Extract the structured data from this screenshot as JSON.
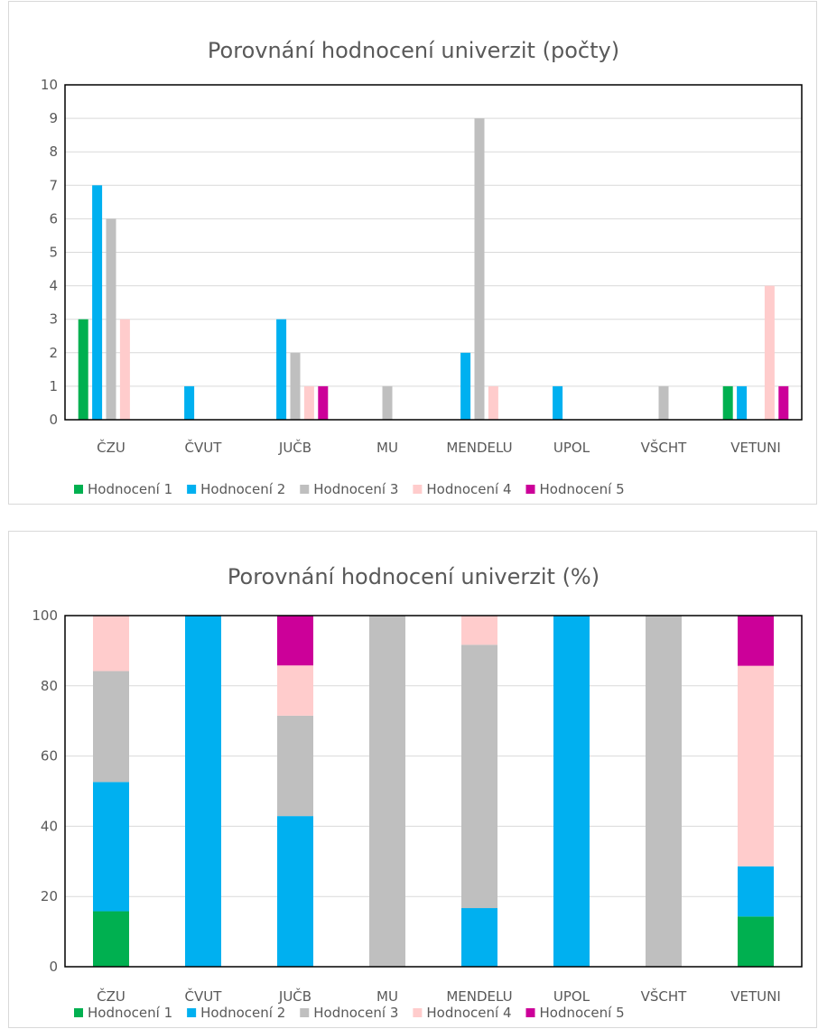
{
  "chart_data": [
    {
      "type": "bar",
      "title": "Porovnání hodnocení univerzit (počty)",
      "categories": [
        "ČZU",
        "ČVUT",
        "JUČB",
        "MU",
        "MENDELU",
        "UPOL",
        "VŠCHT",
        "VETUNI"
      ],
      "series": [
        {
          "name": "Hodnocení 1",
          "color": "#00b050",
          "values": [
            3,
            0,
            0,
            0,
            0,
            0,
            0,
            1
          ]
        },
        {
          "name": "Hodnocení 2",
          "color": "#00b0f0",
          "values": [
            7,
            1,
            3,
            0,
            2,
            1,
            0,
            1
          ]
        },
        {
          "name": "Hodnocení 3",
          "color": "#bfbfbf",
          "values": [
            6,
            0,
            2,
            1,
            9,
            0,
            1,
            0
          ]
        },
        {
          "name": "Hodnocení 4",
          "color": "#ffcccc",
          "values": [
            3,
            0,
            1,
            0,
            1,
            0,
            0,
            4
          ]
        },
        {
          "name": "Hodnocení 5",
          "color": "#cc0099",
          "values": [
            0,
            0,
            1,
            0,
            0,
            0,
            0,
            1
          ]
        }
      ],
      "ylim": [
        0,
        10
      ],
      "yticks": [
        "0",
        "1",
        "2",
        "3",
        "4",
        "5",
        "6",
        "7",
        "8",
        "9",
        "10"
      ],
      "grid": true,
      "legend": "bottom"
    },
    {
      "type": "bar",
      "stacked": true,
      "title": "Porovnání hodnocení univerzit (%)",
      "categories": [
        "ČZU",
        "ČVUT",
        "JUČB",
        "MU",
        "MENDELU",
        "UPOL",
        "VŠCHT",
        "VETUNI"
      ],
      "series": [
        {
          "name": "Hodnocení 1",
          "color": "#00b050",
          "values": [
            15.8,
            0,
            0,
            0,
            0,
            0,
            0,
            14.3
          ]
        },
        {
          "name": "Hodnocení 2",
          "color": "#00b0f0",
          "values": [
            36.8,
            100,
            42.9,
            0,
            16.7,
            100,
            0,
            14.3
          ]
        },
        {
          "name": "Hodnocení 3",
          "color": "#bfbfbf",
          "values": [
            31.6,
            0,
            28.6,
            100,
            75.0,
            0,
            100,
            0
          ]
        },
        {
          "name": "Hodnocení 4",
          "color": "#ffcccc",
          "values": [
            15.8,
            0,
            14.3,
            0,
            8.3,
            0,
            0,
            57.1
          ]
        },
        {
          "name": "Hodnocení 5",
          "color": "#cc0099",
          "values": [
            0,
            0,
            14.3,
            0,
            0,
            0,
            0,
            14.3
          ]
        }
      ],
      "ylim": [
        0,
        100
      ],
      "yticks": [
        "0",
        "20",
        "40",
        "60",
        "80",
        "100"
      ],
      "grid": true,
      "legend": "bottom"
    }
  ]
}
